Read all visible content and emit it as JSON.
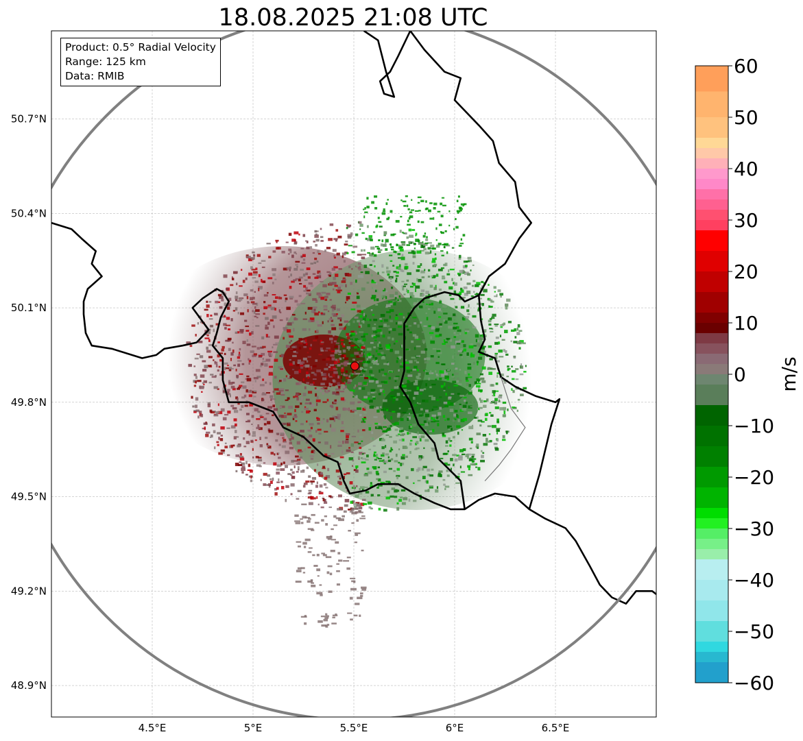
{
  "title": "18.08.2025 21:08 UTC",
  "info": {
    "product": "Product: 0.5° Radial Velocity",
    "range": "Range: 125 km",
    "data": "Data: RMIB"
  },
  "map": {
    "lon_range": [
      4.0,
      7.0
    ],
    "lat_range": [
      48.8,
      50.98
    ],
    "lon_ticks": [
      "4.5°E",
      "5°E",
      "5.5°E",
      "6°E",
      "6.5°E"
    ],
    "lon_tick_values": [
      4.5,
      5.0,
      5.5,
      6.0,
      6.5
    ],
    "lat_ticks": [
      "48.9°N",
      "49.2°N",
      "49.5°N",
      "49.8°N",
      "50.1°N",
      "50.4°N",
      "50.7°N"
    ],
    "lat_tick_values": [
      48.9,
      49.2,
      49.5,
      49.8,
      50.1,
      50.4,
      50.7
    ],
    "radar_site": {
      "lon": 5.505,
      "lat": 49.915
    },
    "range_ring_km": 125,
    "grid": true
  },
  "colorbar": {
    "label": "m/s",
    "range": [
      -60,
      60
    ],
    "ticks": [
      "60",
      "50",
      "40",
      "30",
      "20",
      "10",
      "0",
      "−10",
      "−20",
      "−30",
      "−40",
      "−50",
      "−60"
    ],
    "tick_values": [
      60,
      50,
      40,
      30,
      20,
      10,
      0,
      -10,
      -20,
      -30,
      -40,
      -50,
      -60
    ]
  }
}
